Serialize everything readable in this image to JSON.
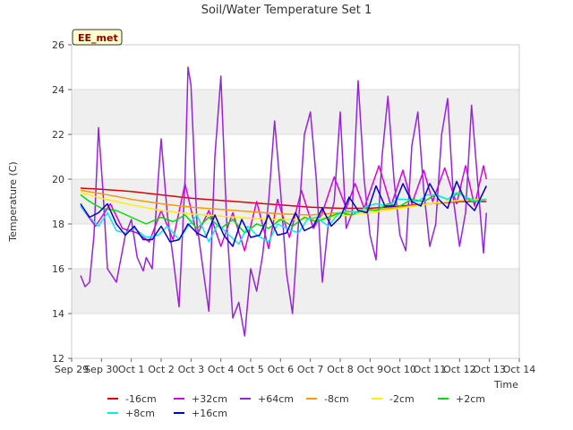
{
  "chart_data": {
    "type": "line",
    "title": "Soil/Water Temperature Set 1",
    "badge": "EE_met",
    "xlabel": "Time",
    "ylabel": "Temperature (C)",
    "xlim": [
      0,
      15
    ],
    "ylim": [
      12,
      26
    ],
    "x_ticks": [
      {
        "v": 0,
        "label": "Sep 29"
      },
      {
        "v": 1,
        "label": "Sep 30"
      },
      {
        "v": 2,
        "label": "Oct 1"
      },
      {
        "v": 3,
        "label": "Oct 2"
      },
      {
        "v": 4,
        "label": "Oct 3"
      },
      {
        "v": 5,
        "label": "Oct 4"
      },
      {
        "v": 6,
        "label": "Oct 5"
      },
      {
        "v": 7,
        "label": "Oct 6"
      },
      {
        "v": 8,
        "label": "Oct 7"
      },
      {
        "v": 9,
        "label": "Oct 8"
      },
      {
        "v": 10,
        "label": "Oct 9"
      },
      {
        "v": 11,
        "label": "Oct 10"
      },
      {
        "v": 12,
        "label": "Oct 11"
      },
      {
        "v": 13,
        "label": "Oct 12"
      },
      {
        "v": 14,
        "label": "Oct 13"
      },
      {
        "v": 15,
        "label": "Oct 14"
      }
    ],
    "y_ticks": [
      12,
      14,
      16,
      18,
      20,
      22,
      24,
      26
    ],
    "bands": [
      [
        14,
        16
      ],
      [
        18,
        20
      ],
      [
        22,
        24
      ]
    ],
    "grid": true,
    "legend": "bottom",
    "series": [
      {
        "name": "-16cm",
        "color": "#dd0000",
        "x": [
          0.3,
          1,
          2,
          3,
          4,
          5,
          6,
          7,
          8,
          9,
          10,
          11,
          12,
          13,
          13.9
        ],
        "y": [
          19.6,
          19.55,
          19.45,
          19.3,
          19.15,
          19.05,
          18.95,
          18.85,
          18.75,
          18.7,
          18.7,
          18.8,
          18.9,
          19.0,
          19.0
        ]
      },
      {
        "name": "+32cm",
        "color": "#dd00dd",
        "x": [
          0.3,
          0.8,
          1.3,
          1.7,
          2.2,
          2.6,
          3.0,
          3.4,
          3.8,
          4.2,
          4.6,
          5.0,
          5.4,
          5.8,
          6.2,
          6.6,
          6.9,
          7.3,
          7.7,
          8.1,
          8.4,
          8.8,
          9.2,
          9.5,
          9.8,
          10.3,
          10.7,
          11.1,
          11.4,
          11.8,
          12.1,
          12.5,
          12.9,
          13.2,
          13.5,
          13.8,
          13.9
        ],
        "y": [
          18.8,
          17.9,
          18.9,
          17.8,
          17.6,
          17.2,
          18.6,
          17.3,
          19.8,
          17.5,
          18.6,
          17.0,
          18.5,
          16.8,
          19.0,
          16.9,
          19.1,
          17.4,
          19.5,
          17.8,
          18.5,
          20.1,
          18.7,
          19.8,
          18.7,
          20.6,
          18.8,
          20.4,
          18.9,
          20.4,
          19.0,
          20.5,
          18.9,
          20.6,
          18.8,
          20.6,
          20.0
        ]
      },
      {
        "name": "+64cm",
        "color": "#9922dd",
        "x": [
          0.3,
          0.45,
          0.6,
          0.75,
          0.9,
          1.05,
          1.2,
          1.5,
          1.8,
          2.0,
          2.2,
          2.4,
          2.5,
          2.7,
          2.9,
          3.0,
          3.2,
          3.4,
          3.6,
          3.8,
          3.9,
          4.0,
          4.2,
          4.4,
          4.6,
          4.8,
          5.0,
          5.2,
          5.4,
          5.6,
          5.8,
          6.0,
          6.2,
          6.4,
          6.6,
          6.8,
          7.0,
          7.2,
          7.4,
          7.6,
          7.8,
          8.0,
          8.2,
          8.4,
          8.6,
          8.8,
          9.0,
          9.2,
          9.4,
          9.6,
          9.8,
          10.0,
          10.2,
          10.4,
          10.6,
          10.8,
          11.0,
          11.2,
          11.4,
          11.6,
          11.8,
          12.0,
          12.2,
          12.4,
          12.6,
          12.8,
          13.0,
          13.2,
          13.4,
          13.6,
          13.8,
          13.9
        ],
        "y": [
          15.7,
          15.2,
          15.4,
          17.5,
          22.3,
          19.5,
          16.0,
          15.4,
          17.5,
          18.2,
          16.5,
          15.9,
          16.5,
          16.0,
          20.0,
          21.8,
          18.5,
          16.5,
          14.3,
          20.0,
          25.0,
          24.2,
          18.0,
          16.0,
          14.1,
          21.0,
          24.6,
          18.0,
          13.8,
          14.5,
          13.0,
          16.0,
          15.0,
          16.6,
          19.0,
          22.6,
          19.5,
          15.8,
          14.0,
          18.0,
          22.0,
          23.0,
          20.0,
          15.4,
          18.0,
          19.0,
          23.0,
          17.8,
          18.5,
          24.4,
          20.0,
          17.5,
          16.4,
          21.0,
          23.7,
          20.0,
          17.5,
          16.8,
          21.5,
          23.0,
          19.5,
          17.0,
          18.0,
          22.0,
          23.6,
          19.0,
          17.0,
          18.5,
          23.3,
          20.0,
          16.7,
          18.5
        ]
      },
      {
        "name": "-8cm",
        "color": "#ff9900",
        "x": [
          0.3,
          1,
          2,
          3,
          4,
          5,
          6,
          7,
          8,
          9,
          10,
          11,
          12,
          13,
          13.9
        ],
        "y": [
          19.5,
          19.35,
          19.1,
          18.9,
          18.75,
          18.65,
          18.55,
          18.45,
          18.4,
          18.5,
          18.6,
          18.75,
          18.9,
          19.05,
          19.1
        ]
      },
      {
        "name": "-2cm",
        "color": "#ffee00",
        "x": [
          0.3,
          1,
          2,
          3,
          4,
          5,
          6,
          7,
          8,
          9,
          10,
          11,
          12,
          13,
          13.9
        ],
        "y": [
          19.4,
          19.15,
          18.85,
          18.6,
          18.45,
          18.35,
          18.25,
          18.2,
          18.2,
          18.35,
          18.5,
          18.7,
          18.9,
          19.05,
          19.1
        ]
      },
      {
        "name": "+2cm",
        "color": "#00dd00",
        "x": [
          0.3,
          0.6,
          1.0,
          1.5,
          2.0,
          2.5,
          3.0,
          3.4,
          3.8,
          4.2,
          4.6,
          5.0,
          5.4,
          5.8,
          6.2,
          6.6,
          7.0,
          7.4,
          7.8,
          8.2,
          8.6,
          9.0,
          9.4,
          9.8,
          10.2,
          10.6,
          11.0,
          11.4,
          11.8,
          12.2,
          12.6,
          13.0,
          13.4,
          13.9
        ],
        "y": [
          19.3,
          19.0,
          18.7,
          18.6,
          18.3,
          18.0,
          18.3,
          18.1,
          18.4,
          17.8,
          18.3,
          17.8,
          18.2,
          17.6,
          18.0,
          17.8,
          18.2,
          17.9,
          18.3,
          18.1,
          18.3,
          18.5,
          18.4,
          18.7,
          18.6,
          18.9,
          18.8,
          19.1,
          19.0,
          19.3,
          19.1,
          19.4,
          19.0,
          19.1
        ]
      },
      {
        "name": "+8cm",
        "color": "#00eeee",
        "x": [
          0.3,
          0.6,
          0.9,
          1.2,
          1.5,
          1.8,
          2.1,
          2.5,
          2.9,
          3.2,
          3.6,
          3.9,
          4.2,
          4.6,
          4.9,
          5.2,
          5.6,
          5.9,
          6.2,
          6.6,
          6.9,
          7.2,
          7.6,
          7.9,
          8.2,
          8.6,
          8.9,
          9.2,
          9.6,
          9.9,
          10.2,
          10.6,
          10.9,
          11.2,
          11.6,
          11.9,
          12.2,
          12.6,
          12.9,
          13.2,
          13.6,
          13.9
        ],
        "y": [
          18.8,
          18.3,
          17.9,
          18.5,
          17.7,
          17.6,
          17.8,
          17.4,
          17.5,
          17.9,
          17.3,
          17.9,
          18.4,
          17.2,
          18.0,
          17.6,
          17.1,
          17.9,
          17.5,
          17.2,
          18.0,
          17.8,
          17.6,
          18.2,
          18.3,
          17.9,
          18.4,
          18.6,
          18.5,
          18.8,
          18.9,
          18.8,
          19.1,
          19.1,
          19.0,
          19.3,
          19.3,
          19.1,
          19.4,
          19.2,
          19.0,
          19.1
        ]
      },
      {
        "name": "+16cm",
        "color": "#0000cc",
        "x": [
          0.3,
          0.6,
          0.9,
          1.2,
          1.5,
          1.8,
          2.1,
          2.4,
          2.7,
          3.0,
          3.3,
          3.6,
          3.9,
          4.2,
          4.5,
          4.8,
          5.1,
          5.4,
          5.7,
          6.0,
          6.3,
          6.6,
          6.9,
          7.2,
          7.5,
          7.8,
          8.1,
          8.4,
          8.7,
          9.0,
          9.3,
          9.6,
          9.9,
          10.2,
          10.5,
          10.8,
          11.1,
          11.4,
          11.7,
          12.0,
          12.3,
          12.6,
          12.9,
          13.2,
          13.5,
          13.9
        ],
        "y": [
          18.9,
          18.3,
          18.5,
          18.9,
          18.0,
          17.5,
          17.9,
          17.3,
          17.3,
          17.9,
          17.2,
          17.3,
          18.0,
          17.6,
          17.4,
          18.4,
          17.5,
          17.0,
          18.2,
          17.4,
          17.5,
          18.4,
          17.5,
          17.6,
          18.5,
          17.7,
          17.9,
          18.7,
          17.9,
          18.3,
          19.2,
          18.6,
          18.5,
          19.7,
          18.8,
          18.8,
          19.8,
          19.0,
          18.8,
          19.8,
          19.1,
          18.7,
          19.9,
          19.0,
          18.6,
          19.7
        ]
      }
    ]
  }
}
